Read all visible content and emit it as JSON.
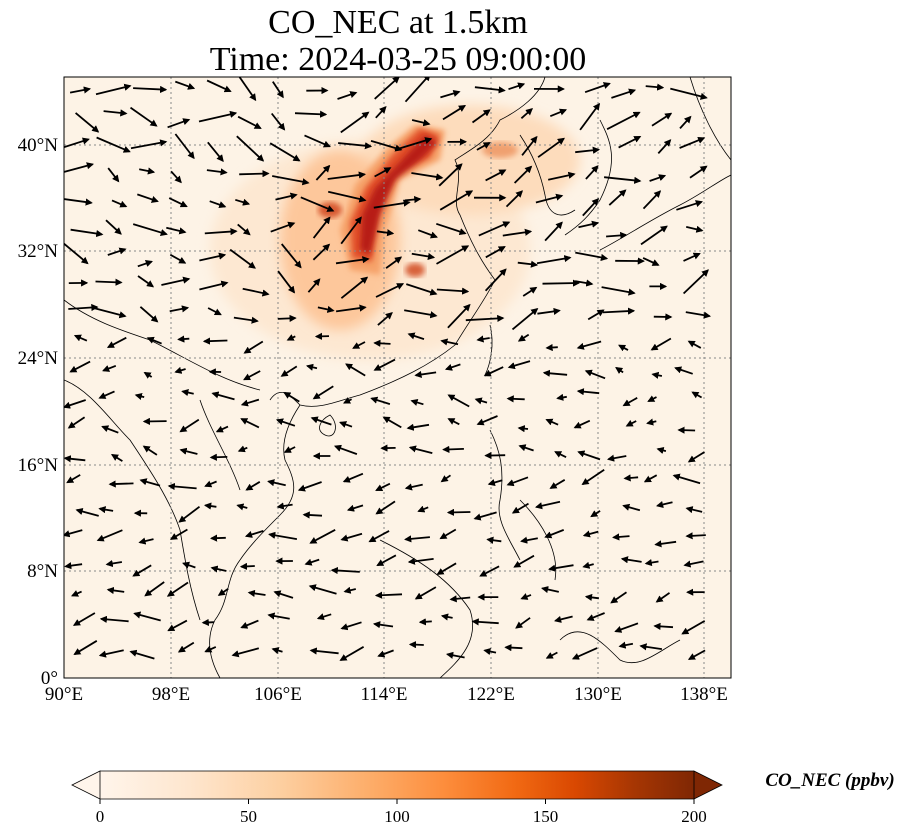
{
  "title": {
    "line1": "CO_NEC at 1.5km",
    "line2": "Time: 2024-03-25 09:00:00"
  },
  "map": {
    "lon_range": [
      90,
      140
    ],
    "lat_range": [
      0,
      45
    ],
    "lon_ticks": [
      "90°E",
      "98°E",
      "106°E",
      "114°E",
      "122°E",
      "130°E",
      "138°E"
    ],
    "lat_ticks": [
      "0°",
      "8°N",
      "16°N",
      "24°N",
      "32°N",
      "40°N"
    ],
    "gridlines": true,
    "coastlines": true,
    "wind_vectors": true
  },
  "colorbar": {
    "label": "CO_NEC (ppbv)",
    "ticks": [
      "0",
      "50",
      "100",
      "150",
      "200"
    ],
    "range": [
      0,
      200
    ],
    "extend": "both",
    "colormap": [
      "#fff5eb",
      "#fee6ce",
      "#fdd0a2",
      "#fdae6b",
      "#fd8d3c",
      "#f16913",
      "#d94801",
      "#a63603",
      "#7f2704"
    ]
  }
}
